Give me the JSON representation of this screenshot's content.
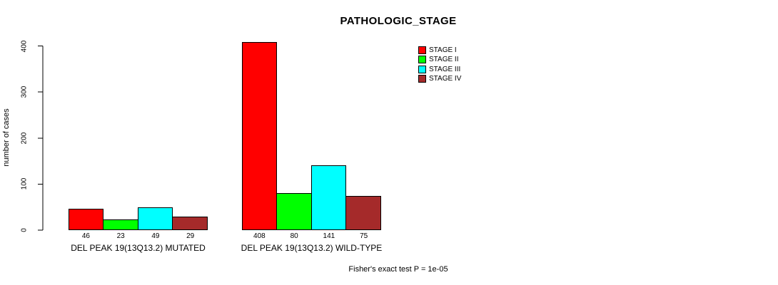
{
  "chart_data": {
    "type": "bar",
    "title": "PATHOLOGIC_STAGE",
    "xlabel": "",
    "ylabel": "number of cases",
    "ylim": [
      0,
      400
    ],
    "yticks": [
      0,
      100,
      200,
      300,
      400
    ],
    "grid": false,
    "legend_position": "top-right",
    "categories": [
      "DEL PEAK 19(13Q13.2) MUTATED",
      "DEL PEAK 19(13Q13.2) WILD-TYPE"
    ],
    "series": [
      {
        "name": "STAGE I",
        "color": "#FF0000",
        "values": [
          46,
          408
        ]
      },
      {
        "name": "STAGE II",
        "color": "#00FF00",
        "values": [
          23,
          80
        ]
      },
      {
        "name": "STAGE III",
        "color": "#00FFFF",
        "values": [
          49,
          141
        ]
      },
      {
        "name": "STAGE IV",
        "color": "#A52A2A",
        "values": [
          29,
          75
        ]
      }
    ],
    "bar_value_labels": [
      [
        46,
        23,
        49,
        29
      ],
      [
        408,
        80,
        141,
        75
      ]
    ]
  },
  "footnote": "Fisher's exact test P = 1e-05",
  "colors": {
    "axis": "#000000",
    "text": "#000000",
    "background": "#FFFFFF"
  }
}
